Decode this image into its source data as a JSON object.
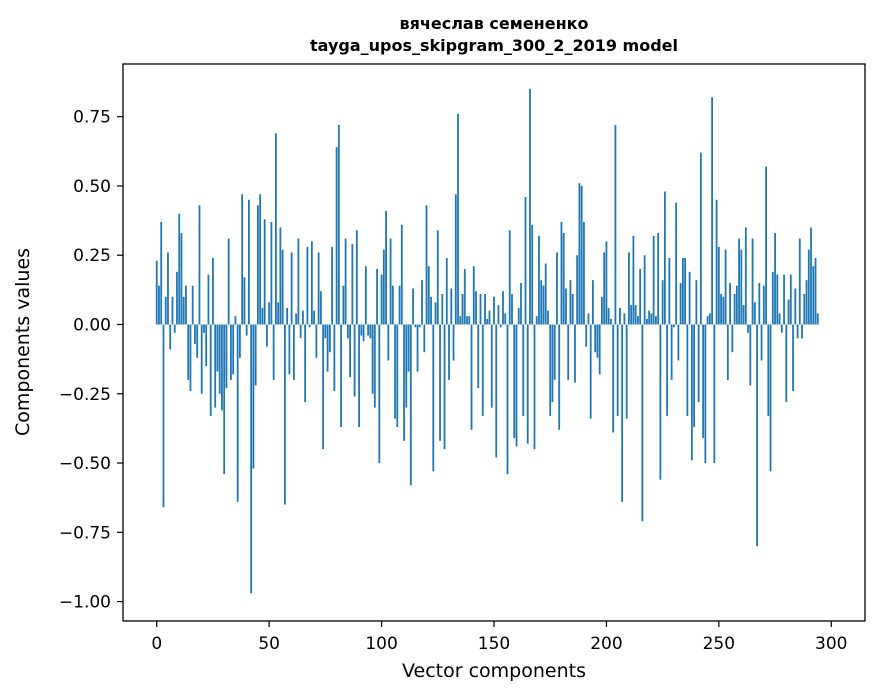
{
  "chart_data": {
    "type": "bar",
    "title": "вячеслав семененко",
    "subtitle": "tayga_upos_skipgram_300_2_2019 model",
    "xlabel": "Vector components",
    "ylabel": "Components values",
    "xlim": [
      -15,
      315
    ],
    "ylim": [
      -1.07,
      0.94
    ],
    "xticks": [
      0,
      50,
      100,
      150,
      200,
      250,
      300
    ],
    "yticks": [
      -1.0,
      -0.75,
      -0.5,
      -0.25,
      0.0,
      0.25,
      0.5,
      0.75
    ],
    "ytick_labels": [
      "−1.00",
      "−0.75",
      "−0.50",
      "−0.25",
      "0.00",
      "0.25",
      "0.50",
      "0.75"
    ],
    "bar_color": "#1f77b4",
    "grid": false,
    "x_start": 0,
    "values": [
      0.23,
      0.14,
      0.37,
      -0.66,
      0.1,
      0.26,
      -0.09,
      0.1,
      -0.03,
      0.19,
      0.4,
      0.33,
      0.1,
      0.14,
      -0.2,
      -0.24,
      0.14,
      -0.07,
      -0.12,
      0.43,
      -0.25,
      -0.03,
      -0.15,
      0.18,
      -0.33,
      0.24,
      -0.3,
      -0.17,
      -0.25,
      -0.31,
      -0.54,
      -0.23,
      0.31,
      -0.2,
      -0.18,
      0.03,
      -0.64,
      -0.12,
      0.47,
      0.17,
      -0.04,
      0.45,
      -0.97,
      -0.52,
      -0.22,
      0.43,
      0.47,
      0.06,
      0.38,
      -0.08,
      0.08,
      0.37,
      -0.2,
      0.69,
      0.08,
      0.35,
      0.27,
      -0.65,
      0.06,
      -0.18,
      0.26,
      -0.2,
      0.04,
      0.31,
      -0.05,
      0.05,
      -0.28,
      0.28,
      -0.01,
      0.3,
      0.05,
      -0.12,
      0.26,
      0.12,
      -0.45,
      -0.05,
      -0.17,
      -0.1,
      0.28,
      -0.24,
      0.64,
      0.72,
      -0.37,
      0.14,
      0.31,
      -0.05,
      -0.19,
      0.29,
      -0.26,
      0.34,
      -0.37,
      -0.04,
      -0.06,
      0.21,
      -0.04,
      -0.05,
      -0.25,
      -0.3,
      0.2,
      -0.5,
      0.18,
      0.27,
      0.41,
      -0.13,
      0.31,
      0.14,
      -0.34,
      -0.37,
      0.14,
      0.36,
      -0.42,
      -0.3,
      -0.17,
      -0.58,
      0.13,
      -0.01,
      -0.17,
      -0.01,
      0.16,
      -0.1,
      0.43,
      0.21,
      0.1,
      -0.53,
      0.08,
      0.34,
      -0.42,
      0.11,
      -0.45,
      0.24,
      -0.2,
      0.13,
      -0.13,
      0.47,
      0.76,
      0.03,
      0.11,
      0.2,
      0.03,
      0.03,
      -0.38,
      0.21,
      0.12,
      -0.23,
      0.11,
      -0.33,
      0.11,
      0.02,
      0.05,
      -0.3,
      0.1,
      -0.48,
      0.07,
      -0.01,
      0.12,
      0.04,
      -0.54,
      0.34,
      0.11,
      -0.41,
      -0.44,
      0.06,
      0.15,
      -0.33,
      0.46,
      -0.43,
      0.85,
      0.36,
      -0.45,
      0.03,
      0.32,
      0.16,
      0.14,
      0.22,
      0.05,
      -0.33,
      -0.28,
      -0.2,
      0.26,
      -0.38,
      0.37,
      0.33,
      0.13,
      -0.2,
      0.16,
      0.11,
      -0.21,
      0.25,
      0.51,
      0.5,
      0.37,
      -0.08,
      0.04,
      -0.34,
      0.16,
      -0.1,
      -0.12,
      -0.18,
      0.1,
      0.26,
      0.3,
      0.06,
      0.02,
      -0.39,
      0.72,
      -0.33,
      0.06,
      -0.64,
      0.04,
      -0.34,
      0.26,
      0.07,
      0.32,
      0.07,
      0.03,
      0.2,
      -0.71,
      0.25,
      0.02,
      0.05,
      0.04,
      0.32,
      0.03,
      0.33,
      -0.56,
      0.16,
      0.48,
      -0.33,
      0.24,
      -0.2,
      -0.01,
      0.44,
      -0.13,
      0.15,
      0.24,
      0.24,
      -0.33,
      0.19,
      -0.49,
      -0.37,
      0.16,
      -0.28,
      0.62,
      -0.41,
      -0.5,
      0.03,
      0.04,
      0.82,
      -0.5,
      0.45,
      0.28,
      0.11,
      0.1,
      0.27,
      -0.2,
      0.15,
      -0.1,
      0.11,
      0.14,
      0.31,
      0.27,
      0.07,
      0.35,
      -0.03,
      -0.22,
      0.31,
      0.08,
      -0.8,
      0.15,
      -0.13,
      0.14,
      0.57,
      -0.33,
      -0.53,
      0.19,
      0.33,
      0.18,
      0.04,
      -0.03,
      0.18,
      -0.28,
      0.09,
      0.18,
      -0.24,
      0.13,
      -0.05,
      0.31,
      -0.05,
      0.11,
      0.16,
      0.27,
      0.35,
      0.21,
      0.24,
      0.04
    ]
  }
}
